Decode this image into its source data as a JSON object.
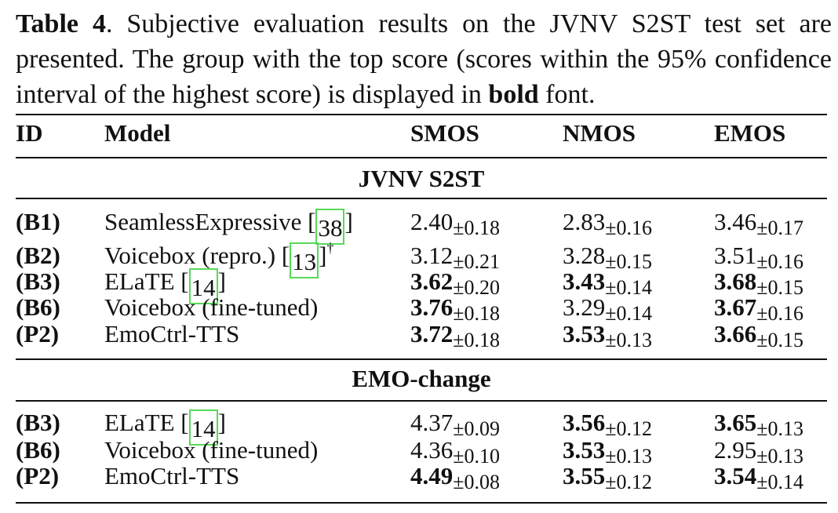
{
  "caption": {
    "label": "Table 4",
    "text1": ". Subjective evaluation results on the JVNV S2ST test set are presented. The group with the top score (scores within the 95% confidence interval of the highest score) is displayed in ",
    "bold_word": "bold",
    "text2": " font."
  },
  "headers": {
    "id": "ID",
    "model": "Model",
    "smos": "SMOS",
    "nmos": "NMOS",
    "emos": "EMOS"
  },
  "sections": [
    {
      "title": "JVNV S2ST",
      "rows": [
        {
          "id": "(B1)",
          "model": "SeamlessExpressive [",
          "cite": "38",
          "after": "]",
          "sup": "",
          "smos": {
            "v": "2.40",
            "ci": "±0.18",
            "bold": false
          },
          "nmos": {
            "v": "2.83",
            "ci": "±0.16",
            "bold": false
          },
          "emos": {
            "v": "3.46",
            "ci": "±0.17",
            "bold": false
          }
        },
        {
          "id": "(B2)",
          "model": "Voicebox (repro.) [",
          "cite": "13",
          "after": "]",
          "sup": "†",
          "smos": {
            "v": "3.12",
            "ci": "±0.21",
            "bold": false
          },
          "nmos": {
            "v": "3.28",
            "ci": "±0.15",
            "bold": false
          },
          "emos": {
            "v": "3.51",
            "ci": "±0.16",
            "bold": false
          }
        },
        {
          "id": "(B3)",
          "model": "ELaTE [",
          "cite": "14",
          "after": "]",
          "sup": "",
          "smos": {
            "v": "3.62",
            "ci": "±0.20",
            "bold": true
          },
          "nmos": {
            "v": "3.43",
            "ci": "±0.14",
            "bold": true
          },
          "emos": {
            "v": "3.68",
            "ci": "±0.15",
            "bold": true
          }
        },
        {
          "id": "(B6)",
          "model": "Voicebox (fine-tuned)",
          "cite": "",
          "after": "",
          "sup": "",
          "smos": {
            "v": "3.76",
            "ci": "±0.18",
            "bold": true
          },
          "nmos": {
            "v": "3.29",
            "ci": "±0.14",
            "bold": false
          },
          "emos": {
            "v": "3.67",
            "ci": "±0.16",
            "bold": true
          }
        },
        {
          "id": "(P2)",
          "model": "EmoCtrl-TTS",
          "cite": "",
          "after": "",
          "sup": "",
          "smos": {
            "v": "3.72",
            "ci": "±0.18",
            "bold": true
          },
          "nmos": {
            "v": "3.53",
            "ci": "±0.13",
            "bold": true
          },
          "emos": {
            "v": "3.66",
            "ci": "±0.15",
            "bold": true
          }
        }
      ]
    },
    {
      "title": "EMO-change",
      "rows": [
        {
          "id": "(B3)",
          "model": "ELaTE [",
          "cite": "14",
          "after": "]",
          "sup": "",
          "smos": {
            "v": "4.37",
            "ci": "±0.09",
            "bold": false
          },
          "nmos": {
            "v": "3.56",
            "ci": "±0.12",
            "bold": true
          },
          "emos": {
            "v": "3.65",
            "ci": "±0.13",
            "bold": true
          }
        },
        {
          "id": "(B6)",
          "model": "Voicebox (fine-tuned)",
          "cite": "",
          "after": "",
          "sup": "",
          "smos": {
            "v": "4.36",
            "ci": "±0.10",
            "bold": false
          },
          "nmos": {
            "v": "3.53",
            "ci": "±0.13",
            "bold": true
          },
          "emos": {
            "v": "2.95",
            "ci": "±0.13",
            "bold": false
          }
        },
        {
          "id": "(P2)",
          "model": "EmoCtrl-TTS",
          "cite": "",
          "after": "",
          "sup": "",
          "smos": {
            "v": "4.49",
            "ci": "±0.08",
            "bold": true
          },
          "nmos": {
            "v": "3.55",
            "ci": "±0.12",
            "bold": true
          },
          "emos": {
            "v": "3.54",
            "ci": "±0.14",
            "bold": true
          }
        }
      ]
    }
  ]
}
